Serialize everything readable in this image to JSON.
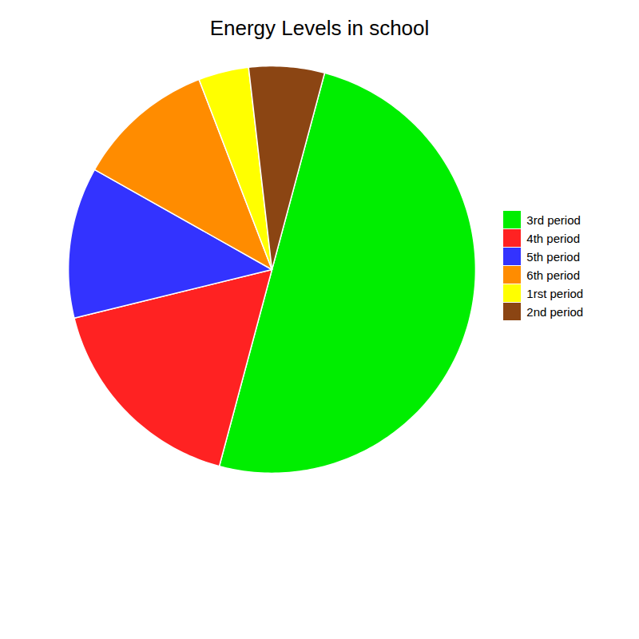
{
  "chart_data": {
    "type": "pie",
    "title": "Energy Levels in school",
    "categories": [
      "3rd period",
      "4th period",
      "5th period",
      "6th period",
      "1rst period",
      "2nd period"
    ],
    "values": [
      50,
      17,
      12,
      11,
      4,
      6
    ],
    "colors": [
      "#00EE00",
      "#FF2222",
      "#3333FF",
      "#FF8C00",
      "#FFFF00",
      "#8B4513"
    ],
    "legend": "right"
  }
}
